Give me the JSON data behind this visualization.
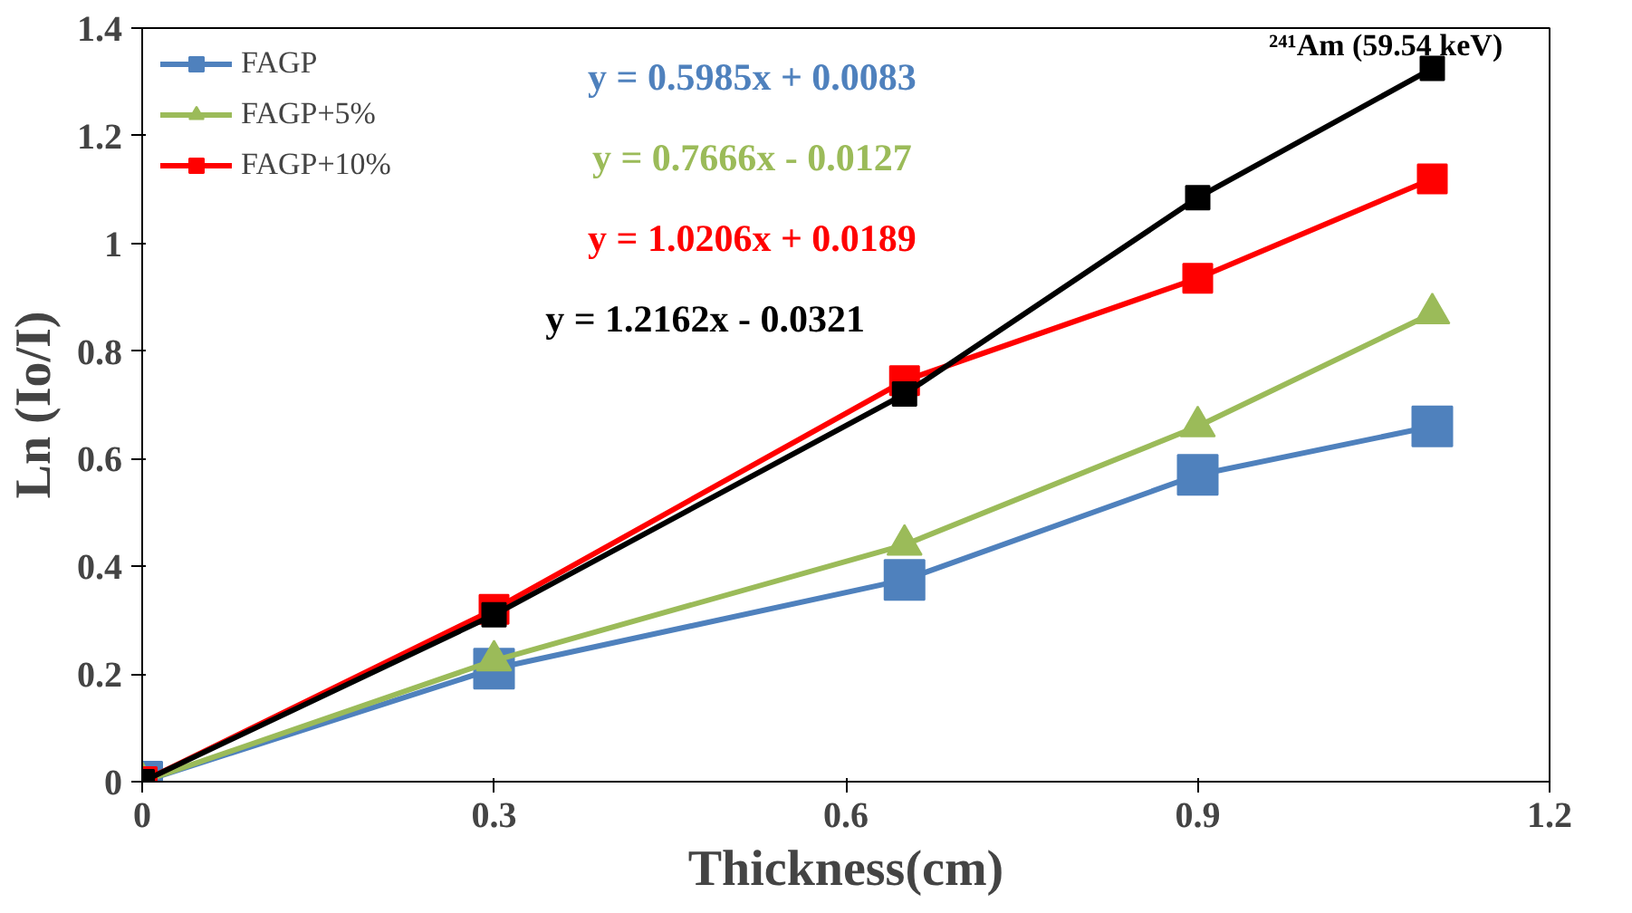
{
  "chart_data": {
    "type": "line",
    "xlabel": "Thickness(cm)",
    "ylabel": "Ln (Io/I)",
    "x": [
      0,
      0.3,
      0.65,
      0.9,
      1.1
    ],
    "series": [
      {
        "name": "FAGP",
        "color": "#4f81bd",
        "marker": "square",
        "values": [
          0,
          0.21,
          0.375,
          0.57,
          0.66
        ]
      },
      {
        "name": "FAGP+5%",
        "color": "#9bbb59",
        "marker": "triangle",
        "values": [
          0,
          0.225,
          0.44,
          0.66,
          0.87
        ]
      },
      {
        "name": "FAGP+10%",
        "color": "#ff0000",
        "marker": "square",
        "values": [
          0,
          0.32,
          0.745,
          0.935,
          1.12
        ]
      },
      {
        "color": "#000000",
        "marker": "square",
        "values": [
          0,
          0.31,
          0.72,
          1.085,
          1.325
        ]
      }
    ],
    "annotations": [
      "y = 0.5985x + 0.0083",
      "y = 0.7666x - 0.0127",
      "y = 1.0206x + 0.0189",
      "y = 1.2162x - 0.0321",
      "²⁴¹Am (59.54 keV)"
    ],
    "xlim": [
      0,
      1.2
    ],
    "ylim": [
      0,
      1.4
    ],
    "xticks": [
      0,
      0.3,
      0.6,
      0.9,
      1.2
    ],
    "yticks": [
      0,
      0.2,
      0.4,
      0.6,
      0.8,
      1,
      1.2,
      1.4
    ],
    "grid": false,
    "legend": "top left",
    "line_style": "solid"
  }
}
